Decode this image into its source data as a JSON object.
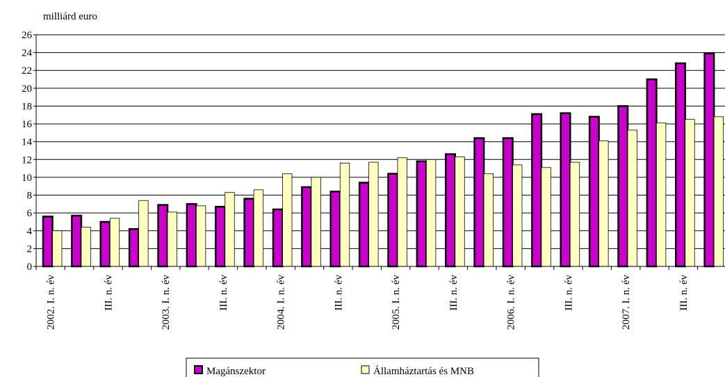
{
  "chart_data": {
    "type": "bar",
    "y_label": "milliárd euro",
    "categories": [
      "2002. I. n. év",
      null,
      "III. n. év",
      null,
      "2003. I. n. év",
      null,
      "III. n. év",
      null,
      "2004. I. n. év",
      null,
      "III. n. év",
      null,
      "2005. I. n. év",
      null,
      "III. n. év",
      null,
      "2006. I. n. év",
      null,
      "III. n. év",
      null,
      "2007. I. n. év",
      null,
      "III. n. év",
      null
    ],
    "series": [
      {
        "name": "Magánszektor",
        "color": "#cc00cc",
        "values": [
          5.6,
          5.7,
          5.0,
          4.2,
          6.9,
          7.0,
          6.7,
          7.6,
          6.4,
          8.9,
          8.4,
          9.4,
          10.4,
          11.8,
          12.6,
          14.4,
          14.4,
          17.1,
          17.2,
          16.8,
          18.0,
          21.0,
          22.8,
          23.9
        ]
      },
      {
        "name": "Államháztartás és MNB",
        "color": "#ffffc0",
        "values": [
          4.0,
          4.4,
          5.4,
          7.4,
          6.1,
          6.8,
          8.3,
          8.6,
          10.4,
          10.0,
          11.6,
          11.7,
          12.2,
          12.0,
          12.3,
          10.4,
          11.4,
          11.1,
          11.7,
          14.1,
          15.3,
          16.1,
          16.5,
          16.8
        ]
      }
    ],
    "ylim": [
      0,
      26
    ],
    "yticks": [
      0,
      2,
      4,
      6,
      8,
      10,
      12,
      14,
      16,
      18,
      20,
      22,
      24,
      26
    ],
    "grid": true,
    "legend": "bottom"
  }
}
